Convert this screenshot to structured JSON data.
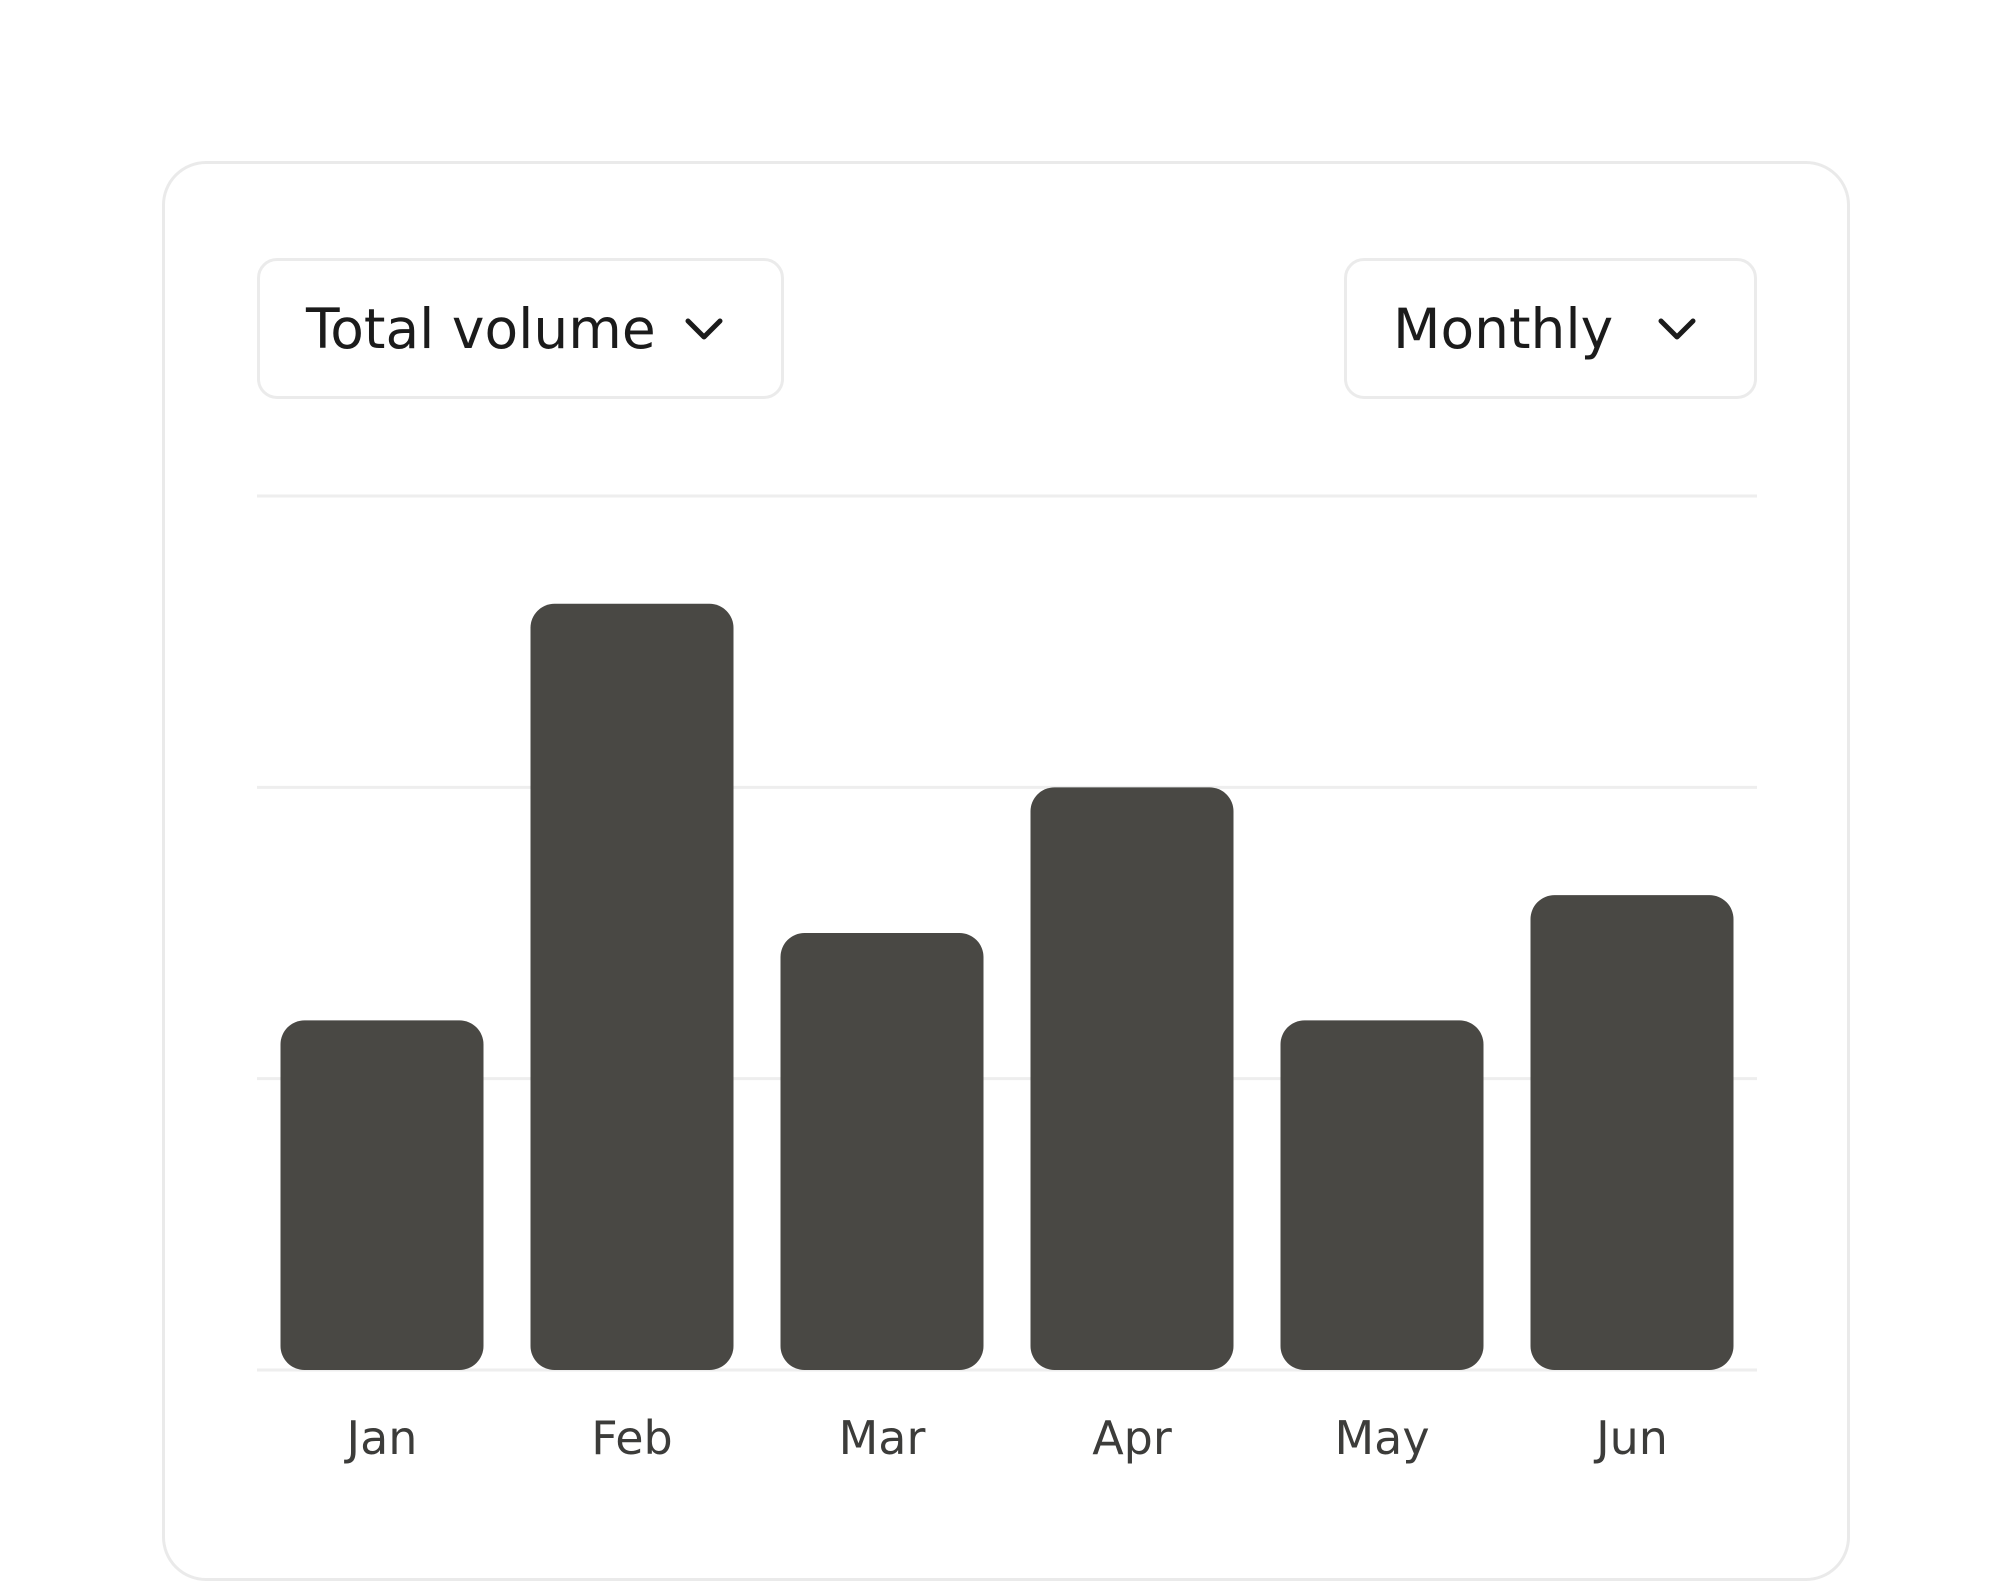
{
  "controls": {
    "metric": {
      "label": "Total volume",
      "icon": "chevron-down-icon"
    },
    "period": {
      "label": "Monthly",
      "icon": "chevron-down-icon"
    }
  },
  "chart_data": {
    "type": "bar",
    "categories": [
      "Jan",
      "Feb",
      "Mar",
      "Apr",
      "May",
      "Jun"
    ],
    "values": [
      1.2,
      2.63,
      1.5,
      2.0,
      1.2,
      1.63
    ],
    "ylim": [
      0,
      3
    ],
    "grid": true,
    "bar_color": "#494844",
    "grid_color": "#eeeeee"
  }
}
